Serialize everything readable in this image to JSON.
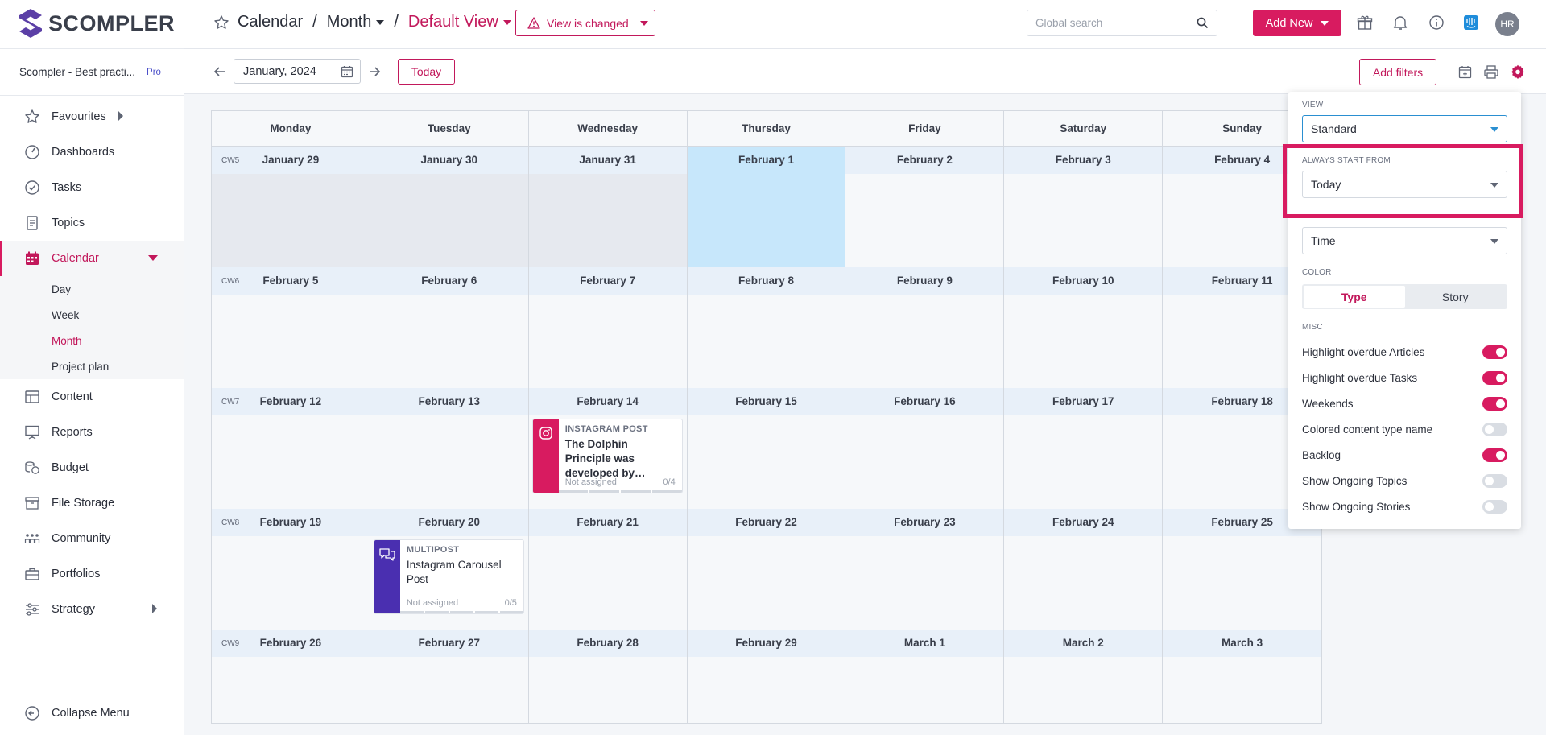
{
  "brand": {
    "name": "SCOMPLER",
    "accent": "#d81b60",
    "logo_color": "#5b3fa6"
  },
  "workspace": {
    "name": "Scompler - Best practi...",
    "plan": "Pro"
  },
  "nav": {
    "items": [
      {
        "label": "Favourites",
        "icon": "star-icon"
      },
      {
        "label": "Dashboards",
        "icon": "gauge-icon"
      },
      {
        "label": "Tasks",
        "icon": "check-circle-icon"
      },
      {
        "label": "Topics",
        "icon": "document-icon"
      },
      {
        "label": "Calendar",
        "icon": "calendar-icon"
      },
      {
        "label": "Content",
        "icon": "table-icon"
      },
      {
        "label": "Reports",
        "icon": "presentation-icon"
      },
      {
        "label": "Budget",
        "icon": "coins-icon"
      },
      {
        "label": "File Storage",
        "icon": "archive-icon"
      },
      {
        "label": "Community",
        "icon": "people-icon"
      },
      {
        "label": "Portfolios",
        "icon": "briefcase-icon"
      },
      {
        "label": "Strategy",
        "icon": "sliders-icon"
      }
    ],
    "calendar_sub": [
      "Day",
      "Week",
      "Month",
      "Project plan"
    ],
    "collapse_label": "Collapse Menu"
  },
  "header": {
    "crumb_calendar": "Calendar",
    "crumb_month": "Month",
    "crumb_view": "Default View",
    "separator": "/",
    "view_changed": "View is changed",
    "search_placeholder": "Global search",
    "add_new": "Add New",
    "avatar_initials": "HR"
  },
  "toolbar": {
    "date_value": "January, 2024",
    "today": "Today",
    "add_filters": "Add filters"
  },
  "calendar": {
    "weekdays": [
      "Monday",
      "Tuesday",
      "Wednesday",
      "Thursday",
      "Friday",
      "Saturday",
      "Sunday"
    ],
    "weeks": [
      {
        "cw": "CW5",
        "days": [
          "January 29",
          "January 30",
          "January 31",
          "February 1",
          "February 2",
          "February 3",
          "February 4"
        ]
      },
      {
        "cw": "CW6",
        "days": [
          "February 5",
          "February 6",
          "February 7",
          "February 8",
          "February 9",
          "February 10",
          "February 11"
        ]
      },
      {
        "cw": "CW7",
        "days": [
          "February 12",
          "February 13",
          "February 14",
          "February 15",
          "February 16",
          "February 17",
          "February 18"
        ]
      },
      {
        "cw": "CW8",
        "days": [
          "February 19",
          "February 20",
          "February 21",
          "February 22",
          "February 23",
          "February 24",
          "February 25"
        ]
      },
      {
        "cw": "CW9",
        "days": [
          "February 26",
          "February 27",
          "February 28",
          "February 29",
          "March 1",
          "March 2",
          "March 3"
        ]
      }
    ],
    "cards": [
      {
        "type": "INSTAGRAM POST",
        "title": "The Dolphin Principle was developed by…",
        "assignee": "Not assigned",
        "progress": "0/4",
        "color": "#d81b60",
        "icon": "instagram-icon"
      },
      {
        "type": "MULTIPOST",
        "title": "Instagram Carousel Post",
        "assignee": "Not assigned",
        "progress": "0/5",
        "color": "#4a2fb0",
        "icon": "chat-bubbles-icon"
      }
    ]
  },
  "settings": {
    "view_label": "VIEW",
    "view_value": "Standard",
    "start_label": "ALWAYS START FROM",
    "start_value": "Today",
    "time_value": "Time",
    "color_label": "COLOR",
    "color_type": "Type",
    "color_story": "Story",
    "misc_label": "MISC",
    "misc": [
      {
        "label": "Highlight overdue Articles",
        "on": true
      },
      {
        "label": "Highlight overdue Tasks",
        "on": true
      },
      {
        "label": "Weekends",
        "on": true
      },
      {
        "label": "Colored content type name",
        "on": false
      },
      {
        "label": "Backlog",
        "on": true
      },
      {
        "label": "Show Ongoing Topics",
        "on": false
      },
      {
        "label": "Show Ongoing Stories",
        "on": false
      }
    ]
  }
}
